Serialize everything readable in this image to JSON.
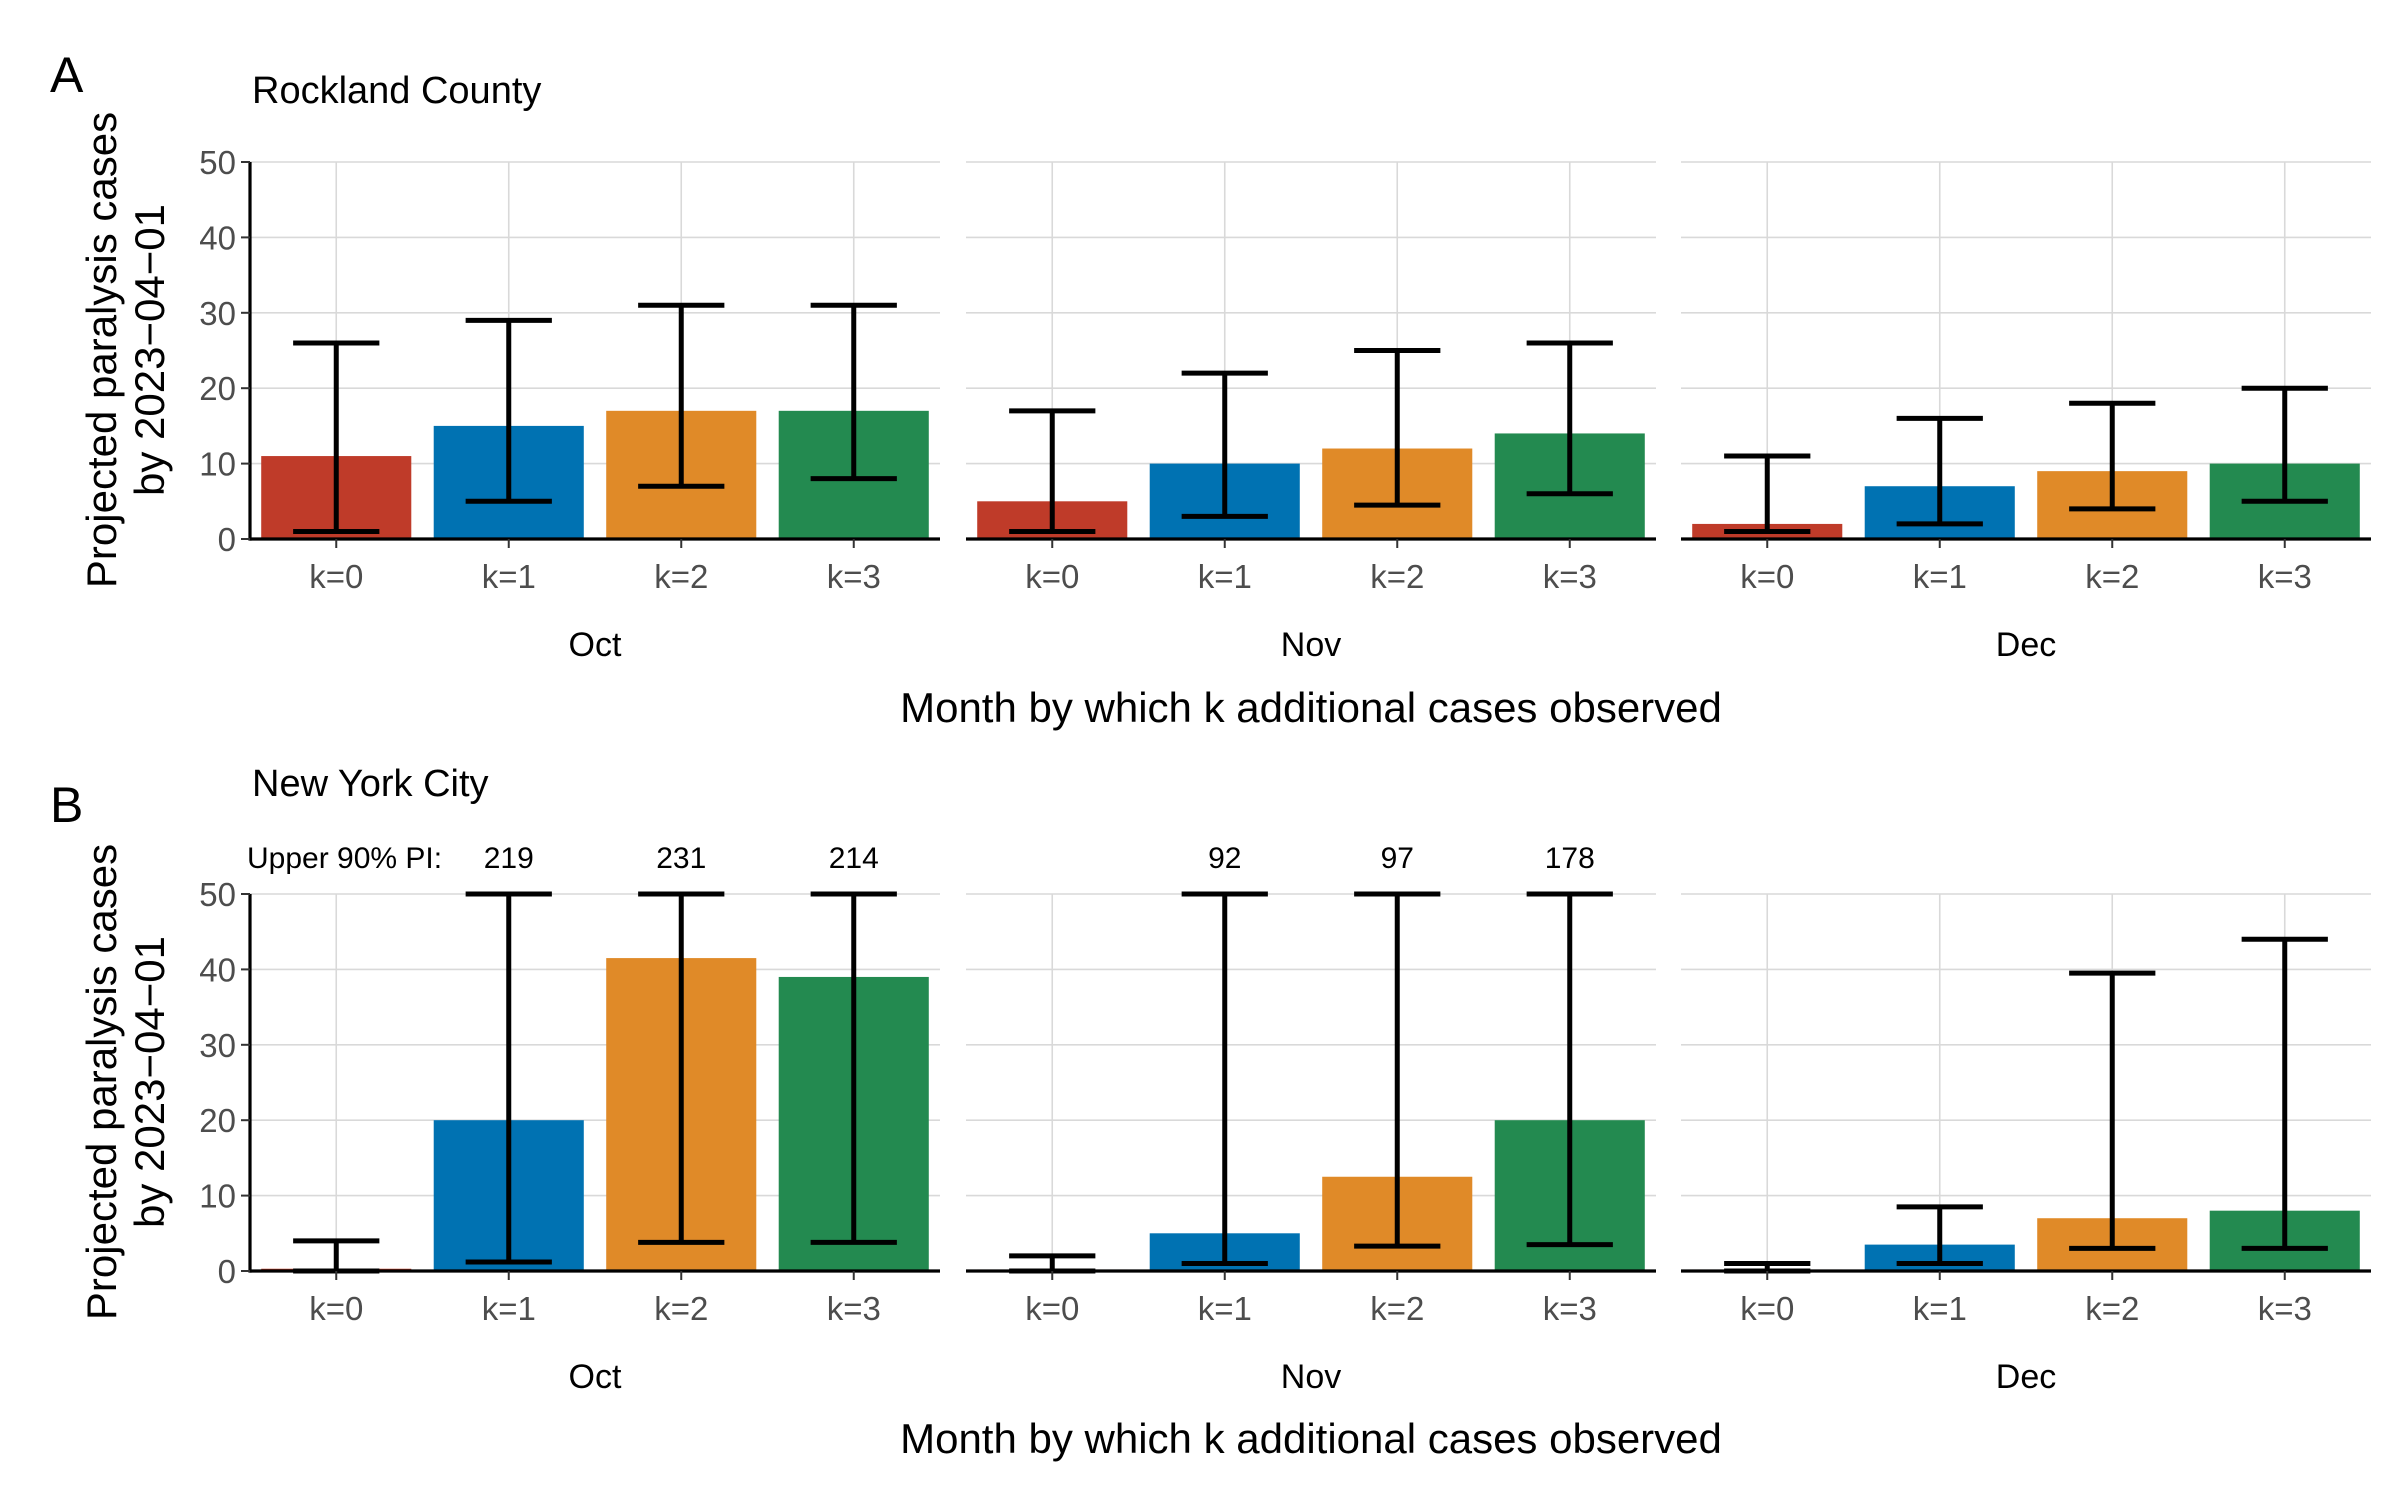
{
  "colors": {
    "k=0": "#bf3b29",
    "k=1": "#0072b2",
    "k=2": "#e08a28",
    "k=3": "#238a50",
    "grid": "#d9d9d9",
    "axis": "#000000"
  },
  "chart_data": [
    {
      "type": "bar",
      "panel_letter": "A",
      "title": "Rockland County",
      "ylabel_line1": "Projected paralysis cases",
      "ylabel_line2": "by 2023−04−01",
      "xlabel": "Month by which k additional cases observed",
      "ylim": [
        0,
        50
      ],
      "yticks": [
        0,
        10,
        20,
        30,
        40,
        50
      ],
      "facets": [
        "Oct",
        "Nov",
        "Dec"
      ],
      "categories": [
        "k=0",
        "k=1",
        "k=2",
        "k=3"
      ],
      "grid": true,
      "upper_label": "",
      "series": [
        {
          "facet": "Oct",
          "values": [
            11,
            15,
            17,
            17
          ],
          "lower": [
            1,
            5,
            7,
            8
          ],
          "upper": [
            26,
            29,
            31,
            31
          ]
        },
        {
          "facet": "Nov",
          "values": [
            5,
            10,
            12,
            14
          ],
          "lower": [
            1,
            3,
            4.5,
            6
          ],
          "upper": [
            17,
            22,
            25,
            26
          ]
        },
        {
          "facet": "Dec",
          "values": [
            2,
            7,
            9,
            10
          ],
          "lower": [
            1,
            2,
            4,
            5
          ],
          "upper": [
            11,
            16,
            18,
            20
          ]
        }
      ]
    },
    {
      "type": "bar",
      "panel_letter": "B",
      "title": "New York City",
      "ylabel_line1": "Projected paralysis cases",
      "ylabel_line2": "by 2023−04−01",
      "xlabel": "Month by which k additional cases observed",
      "ylim": [
        0,
        50
      ],
      "yticks": [
        0,
        10,
        20,
        30,
        40,
        50
      ],
      "facets": [
        "Oct",
        "Nov",
        "Dec"
      ],
      "categories": [
        "k=0",
        "k=1",
        "k=2",
        "k=3"
      ],
      "grid": true,
      "upper_label": "Upper 90% PI:",
      "series": [
        {
          "facet": "Oct",
          "values": [
            0.3,
            20,
            41.5,
            39
          ],
          "lower": [
            0,
            1.2,
            3.8,
            3.8
          ],
          "upper": [
            4,
            219,
            231,
            214
          ],
          "upper_text": [
            "",
            "219",
            "231",
            "214"
          ]
        },
        {
          "facet": "Nov",
          "values": [
            0.2,
            5,
            12.5,
            20
          ],
          "lower": [
            0,
            1,
            3.3,
            3.5
          ],
          "upper": [
            2,
            92,
            97,
            178
          ],
          "upper_text": [
            "",
            "92",
            "97",
            "178"
          ]
        },
        {
          "facet": "Dec",
          "values": [
            0.2,
            3.5,
            7,
            8
          ],
          "lower": [
            0,
            1,
            3,
            3
          ],
          "upper": [
            1,
            8.5,
            39.5,
            44
          ],
          "upper_text": [
            "",
            "",
            "",
            ""
          ]
        }
      ]
    }
  ]
}
